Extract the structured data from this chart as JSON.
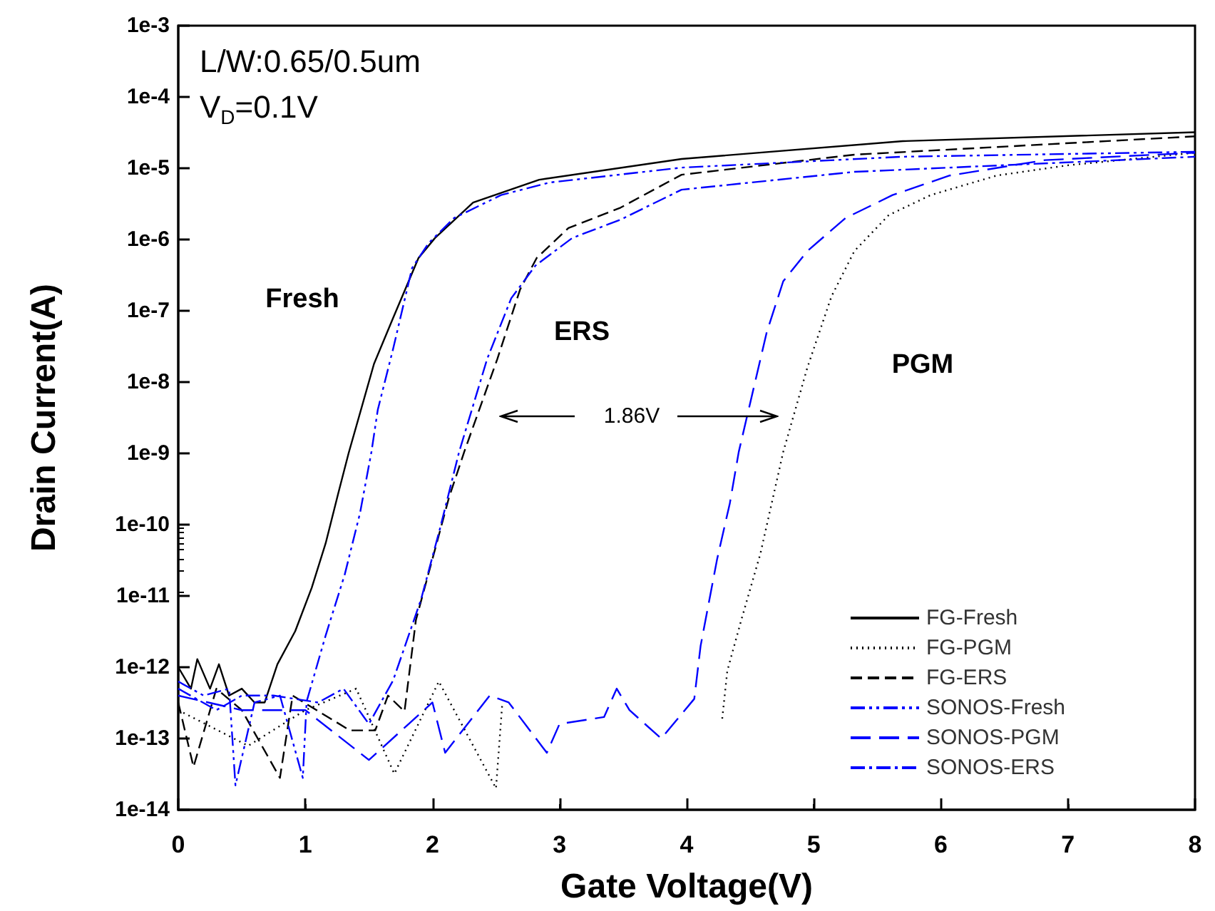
{
  "chart_data": {
    "type": "line",
    "xlabel": "Gate Voltage(V)",
    "ylabel": "Drain Current(A)",
    "log": "y",
    "xlim": [
      0,
      8
    ],
    "xticks": [
      0,
      1,
      2,
      3,
      4,
      5,
      6,
      7,
      8
    ],
    "ylim": [
      1e-14,
      0.001
    ],
    "yticks": [
      {
        "value": 1e-14,
        "label": "1e-14"
      },
      {
        "value": 1e-13,
        "label": "1e-13"
      },
      {
        "value": 1e-12,
        "label": "1e-12"
      },
      {
        "value": 1e-11,
        "label": "1e-11"
      },
      {
        "value": 1e-10,
        "label": "1e-10"
      },
      {
        "value": 1e-09,
        "label": "1e-9"
      },
      {
        "value": 1e-08,
        "label": "1e-8"
      },
      {
        "value": 1e-07,
        "label": "1e-7"
      },
      {
        "value": 1e-06,
        "label": "1e-6"
      },
      {
        "value": 1e-05,
        "label": "1e-5"
      },
      {
        "value": 0.0001,
        "label": "1e-4"
      },
      {
        "value": 0.001,
        "label": "1e-3"
      }
    ],
    "grid": false,
    "legend": "bottom right",
    "marker": "none",
    "annotations": [
      "L/W:0.65/0.5um",
      "V$_{D}$=0.1V",
      "Fresh",
      "ERS",
      "PGM",
      "1.86V"
    ],
    "series": [
      {
        "name": "FG-Fresh",
        "color": "#000000",
        "line_style": "solid",
        "x": [
          0,
          0.1,
          0.15,
          0.25,
          0.32,
          0.4,
          0.5,
          0.6,
          0.68,
          0.78,
          0.92,
          1.05,
          1.16,
          1.26,
          1.34,
          1.54,
          1.69,
          1.89,
          2.02,
          2.32,
          2.84,
          3.96,
          5.7,
          8
        ],
        "values": [
          1e-12,
          5e-13,
          1.3e-12,
          5e-13,
          1.1e-12,
          4e-13,
          5e-13,
          3.2e-13,
          3.2e-13,
          1.1e-12,
          3.2e-12,
          1.3e-11,
          5.5e-11,
          2.8e-10,
          1e-09,
          1.8e-08,
          7.9e-08,
          5.5e-07,
          1.05e-06,
          3.3e-06,
          6.9e-06,
          1.35e-05,
          2.4e-05,
          3.2e-05
        ]
      },
      {
        "name": "FG-PGM",
        "color": "#000000",
        "line_style": "dotted",
        "x": [
          0,
          0.55,
          1.0,
          1.4,
          1.7,
          2.05,
          2.5,
          2.55,
          3.4,
          4.28,
          4.32,
          4.43,
          4.58,
          4.76,
          4.95,
          5.14,
          5.32,
          5.59,
          5.92,
          6.44,
          7.0,
          8
        ],
        "values": [
          2.5e-13,
          7.9e-14,
          2.5e-13,
          5e-13,
          3.2e-14,
          6.3e-13,
          2e-14,
          3.2e-13,
          null,
          1.9e-13,
          8.9e-13,
          4.6e-12,
          3.9e-11,
          1.05e-09,
          1.6e-08,
          1.6e-07,
          6.9e-07,
          2.2e-06,
          4.2e-06,
          7.9e-06,
          1.1e-05,
          1.65e-05
        ]
      },
      {
        "name": "FG-ERS",
        "color": "#000000",
        "line_style": "dashed",
        "x": [
          0,
          0.12,
          0.3,
          0.5,
          0.8,
          0.9,
          1.35,
          1.55,
          1.65,
          1.78,
          1.87,
          2.0,
          2.13,
          2.25,
          2.51,
          2.69,
          2.82,
          3.07,
          3.48,
          3.96,
          5.32,
          8
        ],
        "values": [
          3.2e-13,
          4e-14,
          5e-13,
          2.5e-13,
          2.8e-14,
          4e-13,
          1.3e-13,
          1.3e-13,
          4e-13,
          2.4e-13,
          4.6e-12,
          3.3e-11,
          2.4e-10,
          1.05e-09,
          2.1e-08,
          2e-07,
          5.5e-07,
          1.45e-06,
          2.8e-06,
          8.1e-06,
          1.55e-05,
          2.8e-05
        ]
      },
      {
        "name": "SONOS-Fresh",
        "color": "#0000ff",
        "line_style": "dashdotdot",
        "x": [
          0,
          0.2,
          0.4,
          0.45,
          0.6,
          0.8,
          0.98,
          1.01,
          1.16,
          1.31,
          1.43,
          1.52,
          1.57,
          1.69,
          1.84,
          1.97,
          2.17,
          2.54,
          2.92,
          3.96,
          5.7,
          8
        ],
        "values": [
          6.3e-13,
          4e-13,
          5e-13,
          2.2e-14,
          3.2e-13,
          4e-13,
          2.8e-14,
          3.3e-13,
          2.8e-12,
          2e-11,
          1.45e-10,
          1.05e-09,
          4.1e-09,
          2.9e-08,
          4e-07,
          8.9e-07,
          2e-06,
          4.2e-06,
          6.3e-06,
          1.02e-05,
          1.45e-05,
          1.7e-05
        ]
      },
      {
        "name": "SONOS-PGM",
        "color": "#0000ff",
        "line_style": "longdash",
        "x": [
          0,
          0.5,
          1.0,
          1.5,
          2.0,
          2.1,
          2.45,
          2.6,
          2.9,
          3.0,
          3.35,
          3.45,
          3.55,
          3.8,
          4.06,
          4.11,
          4.24,
          4.34,
          4.41,
          4.63,
          4.76,
          4.95,
          5.25,
          5.62,
          6.07,
          6.82,
          8
        ],
        "values": [
          4e-13,
          2.5e-13,
          2.5e-13,
          5e-14,
          3.2e-13,
          6.3e-14,
          4e-13,
          3.2e-13,
          6.3e-14,
          1.6e-13,
          2e-13,
          5e-13,
          2.5e-13,
          1e-13,
          3.6e-13,
          2e-12,
          3.3e-11,
          2e-10,
          1.05e-09,
          5e-08,
          2.6e-07,
          6.9e-07,
          2e-06,
          4.2e-06,
          7.9e-06,
          1.3e-05,
          1.65e-05
        ]
      },
      {
        "name": "SONOS-ERS",
        "color": "#0000ff",
        "line_style": "dashdot",
        "x": [
          0,
          0.3,
          0.5,
          0.75,
          1.1,
          1.3,
          1.5,
          1.69,
          1.8,
          1.91,
          2.06,
          2.21,
          2.43,
          2.62,
          2.81,
          3.1,
          3.48,
          3.96,
          5.32,
          8
        ],
        "values": [
          5e-13,
          2.5e-13,
          4e-13,
          4e-13,
          3.2e-13,
          5e-13,
          1.6e-13,
          6.5e-13,
          2.4e-12,
          8.9e-12,
          8.9e-11,
          1.05e-09,
          2.1e-08,
          1.5e-07,
          4.3e-07,
          1.05e-06,
          1.9e-06,
          5e-06,
          8.9e-06,
          1.45e-05
        ]
      }
    ]
  }
}
